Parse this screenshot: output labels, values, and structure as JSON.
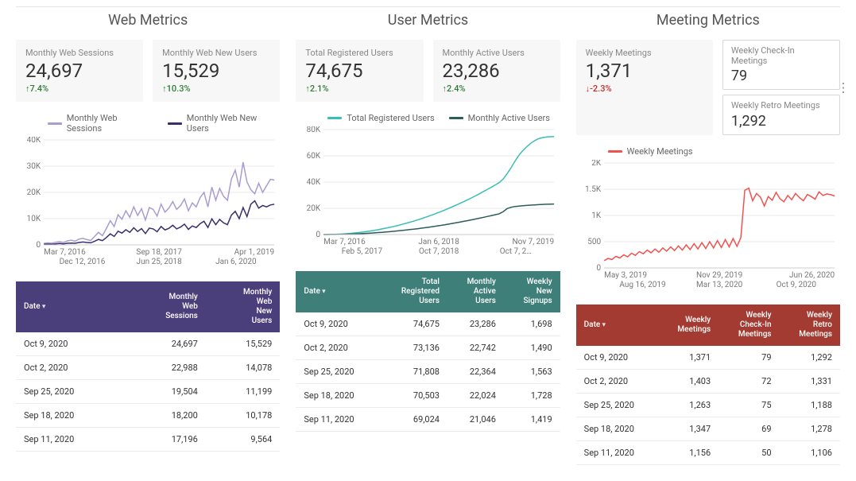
{
  "colors": {
    "web_series1": "#a99cce",
    "web_series2": "#3b2e6e",
    "user_series1": "#3bbdb6",
    "user_series2": "#2c5d59",
    "meeting_series1": "#ef5350",
    "web_header": "#4a3f7a",
    "user_header": "#3e7f7a",
    "meeting_header": "#a33b32",
    "grid": "#e8e8e8",
    "axis": "#777777",
    "up": "#2e7d32",
    "down": "#c62828"
  },
  "sections": {
    "web": {
      "title": "Web Metrics",
      "kpis": [
        {
          "label": "Monthly Web Sessions",
          "value": "24,697",
          "delta": "7.4%",
          "dir": "up"
        },
        {
          "label": "Monthly Web New Users",
          "value": "15,529",
          "delta": "10.3%",
          "dir": "up"
        }
      ],
      "chart": {
        "legend": [
          "Monthly Web Sessions",
          "Monthly Web New Users"
        ],
        "ylim": [
          0,
          40000
        ],
        "ystep": 10000,
        "ylabelK": true,
        "xlabels_top": [
          "Mar 7, 2016",
          "Sep 18, 2017",
          "Apr 1, 2019"
        ],
        "xlabels_bot": [
          "Dec 12, 2016",
          "Jun 25, 2018",
          "Jan 6, 2020"
        ],
        "series1": [
          500,
          800,
          600,
          1000,
          1200,
          900,
          1500,
          1800,
          1400,
          2200,
          2500,
          2000,
          1700,
          3200,
          4800,
          3500,
          6200,
          9200,
          7000,
          11500,
          9800,
          13000,
          10500,
          14500,
          11200,
          13800,
          9500,
          14200,
          13500,
          11000,
          15500,
          12500,
          14000,
          16500,
          13500,
          15000,
          17500,
          13000,
          16000,
          14500,
          18000,
          20000,
          14500,
          22000,
          17000,
          21500,
          18500,
          17000,
          25000,
          28500,
          22000,
          31500,
          24000,
          21000,
          19500,
          23500,
          20000,
          22500,
          25000,
          24697
        ],
        "series2": [
          200,
          300,
          250,
          400,
          500,
          400,
          600,
          700,
          600,
          900,
          1100,
          900,
          800,
          1400,
          2100,
          1600,
          2800,
          4200,
          3200,
          5200,
          4500,
          5800,
          4800,
          6500,
          5100,
          6200,
          4300,
          6400,
          6100,
          5000,
          7000,
          5700,
          6300,
          7500,
          6100,
          6800,
          7900,
          5900,
          7200,
          6600,
          8100,
          9000,
          6600,
          9900,
          7700,
          9700,
          8400,
          7700,
          11300,
          12800,
          10000,
          14200,
          10800,
          15500,
          16800,
          14000,
          15000,
          14500,
          15200,
          15529
        ]
      },
      "table": {
        "header_color": "#4a3f7a",
        "columns": [
          "Date",
          "Monthly Web Sessions",
          "Monthly Web New Users"
        ],
        "rows": [
          [
            "Oct 9, 2020",
            "24,697",
            "15,529"
          ],
          [
            "Oct 2, 2020",
            "22,988",
            "14,078"
          ],
          [
            "Sep 25, 2020",
            "19,504",
            "11,199"
          ],
          [
            "Sep 18, 2020",
            "18,200",
            "10,178"
          ],
          [
            "Sep 11, 2020",
            "17,196",
            "9,564"
          ]
        ]
      }
    },
    "user": {
      "title": "User Metrics",
      "kpis": [
        {
          "label": "Total Registered Users",
          "value": "74,675",
          "delta": "2.1%",
          "dir": "up"
        },
        {
          "label": "Monthly Active Users",
          "value": "23,286",
          "delta": "2.4%",
          "dir": "up"
        }
      ],
      "chart": {
        "legend": [
          "Total Registered Users",
          "Monthly Active Users"
        ],
        "ylim": [
          0,
          80000
        ],
        "ystep": 20000,
        "ylabelK": true,
        "xlabels_top": [
          "Mar 7, 2016",
          "Jan 6, 2018",
          "Nov 7, 2019"
        ],
        "xlabels_bot": [
          "Feb 5, 2017",
          "Oct 7, 2018",
          "Oct 7, 2…"
        ],
        "series1": [
          0,
          50,
          120,
          200,
          320,
          480,
          680,
          920,
          1200,
          1520,
          1880,
          2280,
          2720,
          3200,
          3720,
          4280,
          4880,
          5520,
          6200,
          6920,
          7680,
          8480,
          9320,
          10200,
          11120,
          12080,
          13080,
          14120,
          15200,
          16320,
          17480,
          18680,
          19920,
          21200,
          22520,
          23880,
          25280,
          26720,
          28200,
          29720,
          31280,
          32880,
          34520,
          36200,
          37920,
          39680,
          42500,
          46500,
          51000,
          56000,
          60500,
          64000,
          67000,
          69500,
          71500,
          73000,
          73900,
          74300,
          74550,
          74675
        ],
        "series2": [
          0,
          20,
          48,
          80,
          128,
          192,
          272,
          368,
          480,
          608,
          752,
          912,
          1088,
          1280,
          1488,
          1712,
          1952,
          2208,
          2480,
          2768,
          3072,
          3392,
          3728,
          4080,
          4448,
          4832,
          5232,
          5648,
          6080,
          6528,
          6992,
          7472,
          7968,
          8480,
          9008,
          9552,
          10112,
          10688,
          11280,
          11888,
          12512,
          13152,
          13808,
          14480,
          15168,
          15872,
          17500,
          19800,
          20800,
          21400,
          21700,
          22000,
          22200,
          22400,
          22600,
          22800,
          22950,
          23100,
          23200,
          23286
        ]
      },
      "table": {
        "header_color": "#3e7f7a",
        "columns": [
          "Date",
          "Total Registered Users",
          "Monthly Active Users",
          "Weekly New Signups"
        ],
        "rows": [
          [
            "Oct 9, 2020",
            "74,675",
            "23,286",
            "1,698"
          ],
          [
            "Oct 2, 2020",
            "73,136",
            "22,742",
            "1,490"
          ],
          [
            "Sep 25, 2020",
            "71,808",
            "22,364",
            "1,563"
          ],
          [
            "Sep 18, 2020",
            "70,503",
            "22,024",
            "1,728"
          ],
          [
            "Sep 11, 2020",
            "69,024",
            "21,046",
            "1,419"
          ]
        ]
      }
    },
    "meeting": {
      "title": "Meeting Metrics",
      "kpis_main": {
        "label": "Weekly Meetings",
        "value": "1,371",
        "delta": "-2.3%",
        "dir": "down"
      },
      "kpis_stack": [
        {
          "label": "Weekly Check-In Meetings",
          "value": "79"
        },
        {
          "label": "Weekly Retro Meetings",
          "value": "1,292"
        }
      ],
      "chart": {
        "legend": [
          "Weekly Meetings"
        ],
        "ylim": [
          0,
          2000
        ],
        "ystep": 500,
        "ylabelK": true,
        "xlabels_top": [
          "May 3, 2019",
          "Nov 29, 2019",
          "Jun 26, 2020"
        ],
        "xlabels_bot": [
          "Aug 16, 2019",
          "Mar 13, 2020",
          "Oct 9, 2020"
        ],
        "series1": [
          140,
          180,
          160,
          220,
          190,
          250,
          210,
          280,
          240,
          310,
          270,
          340,
          290,
          360,
          300,
          380,
          320,
          400,
          330,
          420,
          340,
          440,
          350,
          460,
          360,
          480,
          370,
          500,
          380,
          520,
          390,
          540,
          400,
          560,
          410,
          580,
          1480,
          1520,
          1280,
          1420,
          1350,
          1180,
          1360,
          1290,
          1440,
          1320,
          1260,
          1380,
          1300,
          1420,
          1340,
          1280,
          1400,
          1360,
          1310,
          1450,
          1380,
          1410,
          1395,
          1371
        ]
      },
      "table": {
        "header_color": "#a33b32",
        "columns": [
          "Date",
          "Weekly Meetings",
          "Weekly Check-In Meetings",
          "Weekly Retro Meetings"
        ],
        "rows": [
          [
            "Oct 9, 2020",
            "1,371",
            "79",
            "1,292"
          ],
          [
            "Oct 2, 2020",
            "1,403",
            "72",
            "1,331"
          ],
          [
            "Sep 25, 2020",
            "1,263",
            "75",
            "1,188"
          ],
          [
            "Sep 18, 2020",
            "1,347",
            "69",
            "1,278"
          ],
          [
            "Sep 11, 2020",
            "1,156",
            "50",
            "1,106"
          ]
        ]
      }
    }
  }
}
